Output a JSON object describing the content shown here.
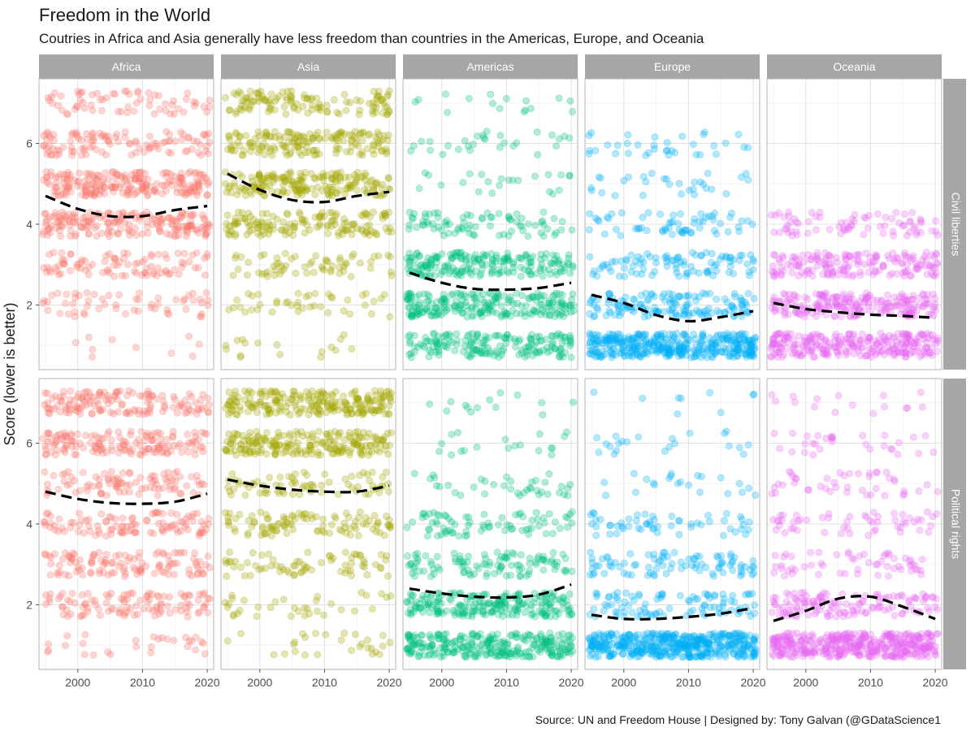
{
  "title": "Freedom in the World",
  "subtitle": "Coutries in Africa and Asia generally have less freedom than countries in the Americas, Europe, and Oceania",
  "caption": "Source: UN and Freedom House  |  Designed by: Tony Galvan (@GDataScience1",
  "colors": {
    "Africa": "#F8766D",
    "Asia": "#A3A500",
    "Americas": "#00BF7D",
    "Europe": "#00B0F6",
    "Oceania": "#E76BF3",
    "strip": "#A6A6A6",
    "smooth": "#000000"
  },
  "chart_data": {
    "type": "scatter",
    "facet_columns": [
      "Africa",
      "Asia",
      "Americas",
      "Europe",
      "Oceania"
    ],
    "facet_rows": [
      "Civil liberties",
      "Political rights"
    ],
    "ylabel": "Score (lower is better)",
    "xlabel": "",
    "x_ticks": [
      2000,
      2010,
      2020
    ],
    "y_ticks": [
      2,
      4,
      6
    ],
    "xlim": [
      1994,
      2021
    ],
    "ylim": [
      0.4,
      7.6
    ],
    "x_range_data": [
      1995,
      2020
    ],
    "grid": true,
    "jitter": true,
    "smooth_trend": {
      "Civil liberties": {
        "Africa": {
          "x": [
            1995,
            2000,
            2005,
            2010,
            2015,
            2020
          ],
          "y": [
            4.7,
            4.38,
            4.2,
            4.2,
            4.35,
            4.45
          ]
        },
        "Asia": {
          "x": [
            1995,
            2000,
            2005,
            2010,
            2015,
            2020
          ],
          "y": [
            5.25,
            4.85,
            4.6,
            4.55,
            4.7,
            4.8
          ]
        },
        "Americas": {
          "x": [
            1995,
            2000,
            2005,
            2010,
            2015,
            2020
          ],
          "y": [
            2.8,
            2.55,
            2.4,
            2.38,
            2.42,
            2.55
          ]
        },
        "Europe": {
          "x": [
            1995,
            2000,
            2005,
            2010,
            2015,
            2020
          ],
          "y": [
            2.25,
            2.05,
            1.75,
            1.6,
            1.7,
            1.85
          ]
        },
        "Oceania": {
          "x": [
            1995,
            2000,
            2005,
            2010,
            2015,
            2020
          ],
          "y": [
            2.05,
            1.9,
            1.82,
            1.76,
            1.73,
            1.68
          ]
        }
      },
      "Political rights": {
        "Africa": {
          "x": [
            1995,
            2000,
            2005,
            2010,
            2015,
            2020
          ],
          "y": [
            4.8,
            4.62,
            4.52,
            4.5,
            4.55,
            4.75
          ]
        },
        "Asia": {
          "x": [
            1995,
            2000,
            2005,
            2010,
            2015,
            2020
          ],
          "y": [
            5.1,
            4.95,
            4.85,
            4.8,
            4.8,
            4.95
          ]
        },
        "Americas": {
          "x": [
            1995,
            2000,
            2005,
            2010,
            2015,
            2020
          ],
          "y": [
            2.4,
            2.28,
            2.2,
            2.18,
            2.25,
            2.5
          ]
        },
        "Europe": {
          "x": [
            1995,
            2000,
            2005,
            2010,
            2015,
            2020
          ],
          "y": [
            1.75,
            1.65,
            1.65,
            1.7,
            1.78,
            1.92
          ]
        },
        "Oceania": {
          "x": [
            1995,
            2000,
            2005,
            2010,
            2015,
            2020
          ],
          "y": [
            1.6,
            1.85,
            2.15,
            2.2,
            1.95,
            1.65
          ]
        }
      }
    },
    "score_distribution_weights": {
      "Civil liberties": {
        "Africa": [
          0.02,
          0.08,
          0.14,
          0.24,
          0.28,
          0.16,
          0.08
        ],
        "Asia": [
          0.02,
          0.04,
          0.1,
          0.2,
          0.26,
          0.22,
          0.16
        ],
        "Americas": [
          0.24,
          0.3,
          0.26,
          0.1,
          0.04,
          0.04,
          0.02
        ],
        "Europe": [
          0.52,
          0.18,
          0.14,
          0.08,
          0.04,
          0.04,
          0
        ],
        "Oceania": [
          0.36,
          0.3,
          0.24,
          0.1,
          0,
          0,
          0
        ]
      },
      "Political rights": {
        "Africa": [
          0.04,
          0.12,
          0.15,
          0.14,
          0.15,
          0.2,
          0.2
        ],
        "Asia": [
          0.04,
          0.06,
          0.1,
          0.13,
          0.1,
          0.27,
          0.3
        ],
        "Americas": [
          0.38,
          0.3,
          0.14,
          0.1,
          0.04,
          0.02,
          0.02
        ],
        "Europe": [
          0.6,
          0.12,
          0.12,
          0.08,
          0.03,
          0.03,
          0.02
        ],
        "Oceania": [
          0.52,
          0.18,
          0.1,
          0.08,
          0.07,
          0.03,
          0.02
        ]
      }
    },
    "points_per_facet_approx": 750
  }
}
